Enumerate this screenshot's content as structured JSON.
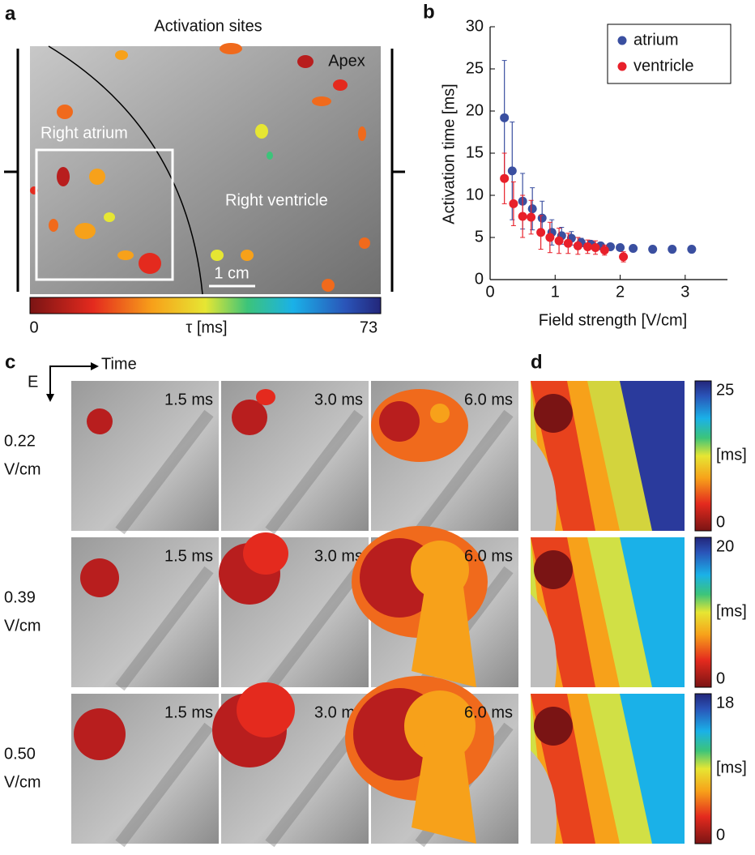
{
  "figure": {
    "panel_labels": [
      "a",
      "b",
      "c",
      "d"
    ],
    "panel_a": {
      "title": "Activation sites",
      "labels": [
        "Apex",
        "Right atrium",
        "Right ventricle"
      ],
      "scale_bar": "1 cm",
      "colorbar": {
        "min": "0",
        "label": "τ [ms]",
        "max": "73"
      }
    },
    "panel_c": {
      "time_label": "Time",
      "field_label": "E",
      "rows": [
        {
          "field": [
            "0.22",
            "V/cm"
          ],
          "times": [
            "1.5 ms",
            "3.0 ms",
            "6.0 ms"
          ],
          "colorbar": {
            "max": "25",
            "label": "[ms]",
            "min": "0"
          }
        },
        {
          "field": [
            "0.39",
            "V/cm"
          ],
          "times": [
            "1.5 ms",
            "3.0 ms",
            "6.0 ms"
          ],
          "colorbar": {
            "max": "20",
            "label": "[ms]",
            "min": "0"
          }
        },
        {
          "field": [
            "0.50",
            "V/cm"
          ],
          "times": [
            "1.5 ms",
            "3.0 ms",
            "6.0 ms"
          ],
          "colorbar": {
            "max": "18",
            "label": "[ms]",
            "min": "0"
          }
        }
      ]
    }
  },
  "chart_data": {
    "type": "scatter",
    "xlabel": "Field strength [V/cm]",
    "ylabel": "Activation time [ms]",
    "xlim": [
      0,
      3.65
    ],
    "ylim": [
      0,
      30
    ],
    "xticks": [
      0,
      1,
      2,
      3
    ],
    "yticks": [
      0,
      5,
      10,
      15,
      20,
      25,
      30
    ],
    "legend": "upper right",
    "series": [
      {
        "name": "atrium",
        "color": "#3a4fa0",
        "x": [
          0.22,
          0.34,
          0.5,
          0.65,
          0.8,
          0.95,
          1.1,
          1.25,
          1.4,
          1.55,
          1.7,
          1.85,
          2.0,
          2.2,
          2.5,
          2.8,
          3.1
        ],
        "values": [
          19.2,
          12.9,
          9.3,
          8.4,
          7.3,
          5.6,
          5.2,
          4.9,
          4.4,
          4.2,
          4.0,
          3.9,
          3.8,
          3.7,
          3.6,
          3.6,
          3.6
        ],
        "errors": [
          6.8,
          5.8,
          3.3,
          2.5,
          2.0,
          1.5,
          1.0,
          0.8,
          0.5,
          0.4,
          0.3,
          0.2,
          0.2,
          0.2,
          0.1,
          0.1,
          0.1
        ]
      },
      {
        "name": "ventricle",
        "color": "#e8202a",
        "x": [
          0.22,
          0.36,
          0.5,
          0.63,
          0.78,
          0.92,
          1.06,
          1.2,
          1.35,
          1.5,
          1.62,
          1.76,
          2.05
        ],
        "values": [
          12.0,
          9.0,
          7.5,
          7.4,
          5.6,
          5.0,
          4.6,
          4.3,
          4.0,
          3.9,
          3.8,
          3.5,
          2.7
        ],
        "errors": [
          3.0,
          2.6,
          2.5,
          2.0,
          2.0,
          1.8,
          1.5,
          1.2,
          1.0,
          0.8,
          0.8,
          0.6,
          0.6
        ]
      }
    ]
  }
}
